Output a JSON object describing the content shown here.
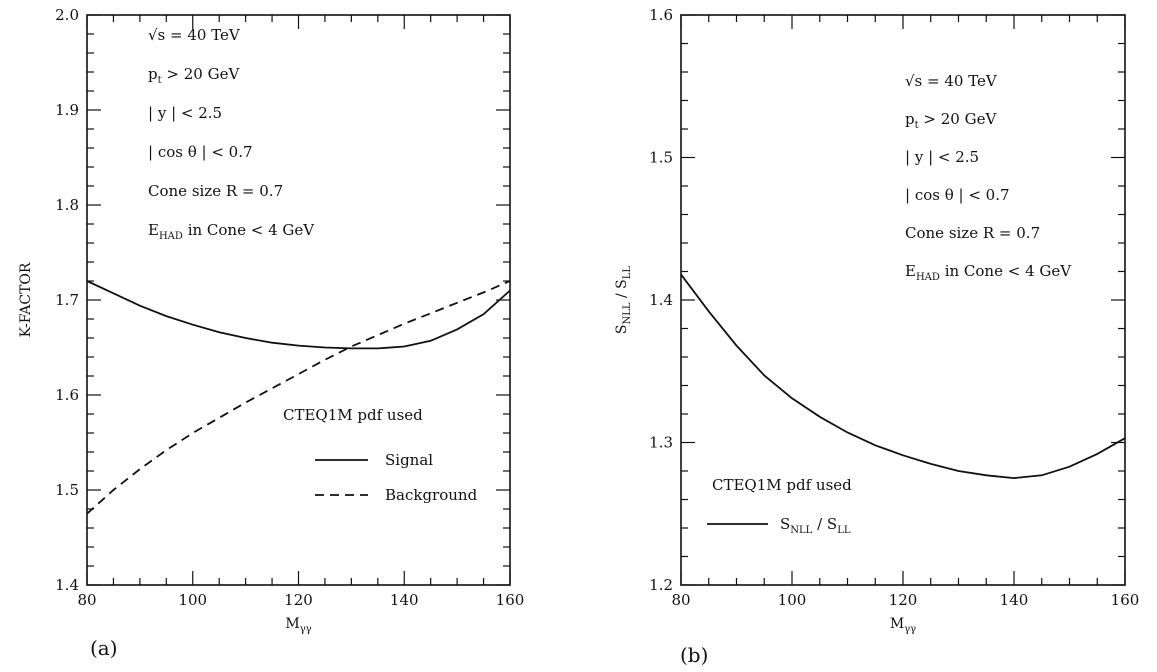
{
  "chart_data": [
    {
      "type": "line",
      "panel_label": "(a)",
      "xlabel": "M",
      "xlabel_sub": "γγ",
      "ylabel": "K-FACTOR",
      "xlim": [
        80,
        160
      ],
      "ylim": [
        1.4,
        2.0
      ],
      "x_ticks": [
        80,
        100,
        120,
        140,
        160
      ],
      "x_tick_labels": [
        "80",
        "100",
        "120",
        "140",
        "160"
      ],
      "y_ticks": [
        1.4,
        1.5,
        1.6,
        1.7,
        1.8,
        1.9,
        2.0
      ],
      "y_tick_labels": [
        "1.4",
        "1.5",
        "1.6",
        "1.7",
        "1.8",
        "1.9",
        "2.0"
      ],
      "annotations": [
        {
          "main": "√s = 40 TeV",
          "sub": "",
          "rest": ""
        },
        {
          "main": "p",
          "sub": "t",
          "rest": " > 20 GeV"
        },
        {
          "main": "| y | < 2.5",
          "sub": "",
          "rest": ""
        },
        {
          "main": "| cos θ | < 0.7",
          "sub": "",
          "rest": ""
        },
        {
          "main": "Cone size R = 0.7",
          "sub": "",
          "rest": ""
        },
        {
          "main": "E",
          "sub": "HAD",
          "rest": " in Cone < 4 GeV"
        }
      ],
      "pdf_note": "CTEQ1M pdf used",
      "legend_position": "lower-right",
      "series": [
        {
          "name": "Signal",
          "style": "solid",
          "x": [
            80,
            85,
            90,
            95,
            100,
            105,
            110,
            115,
            120,
            125,
            130,
            135,
            140,
            145,
            150,
            155,
            160
          ],
          "y": [
            1.72,
            1.707,
            1.694,
            1.683,
            1.674,
            1.666,
            1.66,
            1.655,
            1.652,
            1.65,
            1.649,
            1.649,
            1.651,
            1.657,
            1.669,
            1.685,
            1.71
          ]
        },
        {
          "name": "Background",
          "style": "dashed",
          "x": [
            80,
            85,
            90,
            95,
            100,
            105,
            110,
            115,
            120,
            125,
            130,
            135,
            140,
            145,
            150,
            155,
            160
          ],
          "y": [
            1.475,
            1.5,
            1.522,
            1.542,
            1.56,
            1.576,
            1.592,
            1.607,
            1.622,
            1.637,
            1.651,
            1.663,
            1.675,
            1.686,
            1.697,
            1.708,
            1.72
          ]
        }
      ]
    },
    {
      "type": "line",
      "panel_label": "(b)",
      "xlabel": "M",
      "xlabel_sub": "γγ",
      "ylabel": "S",
      "ylabel_sub": "NLL",
      "ylabel_mid": " / S",
      "ylabel_sub2": "LL",
      "xlim": [
        80,
        160
      ],
      "ylim": [
        1.2,
        1.6
      ],
      "x_ticks": [
        80,
        100,
        120,
        140,
        160
      ],
      "x_tick_labels": [
        "80",
        "100",
        "120",
        "140",
        "160"
      ],
      "y_ticks": [
        1.2,
        1.3,
        1.4,
        1.5,
        1.6
      ],
      "y_tick_labels": [
        "1.2",
        "1.3",
        "1.4",
        "1.5",
        "1.6"
      ],
      "annotations": [
        {
          "main": "√s = 40 TeV",
          "sub": "",
          "rest": ""
        },
        {
          "main": "p",
          "sub": "t",
          "rest": " > 20 GeV"
        },
        {
          "main": "| y | < 2.5",
          "sub": "",
          "rest": ""
        },
        {
          "main": "| cos θ | < 0.7",
          "sub": "",
          "rest": ""
        },
        {
          "main": "Cone size R = 0.7",
          "sub": "",
          "rest": ""
        },
        {
          "main": "E",
          "sub": "HAD",
          "rest": " in Cone < 4 GeV"
        }
      ],
      "pdf_note": "CTEQ1M pdf used",
      "legend_position": "lower-left",
      "series": [
        {
          "name": "S_NLL / S_LL",
          "legend_main": "S",
          "legend_sub": "NLL",
          "legend_mid": " / S",
          "legend_sub2": "LL",
          "style": "solid",
          "x": [
            80,
            85,
            90,
            95,
            100,
            105,
            110,
            115,
            120,
            125,
            130,
            135,
            140,
            145,
            150,
            155,
            160
          ],
          "y": [
            1.418,
            1.392,
            1.368,
            1.347,
            1.331,
            1.318,
            1.307,
            1.298,
            1.291,
            1.285,
            1.28,
            1.277,
            1.275,
            1.277,
            1.283,
            1.292,
            1.303
          ]
        }
      ]
    }
  ]
}
